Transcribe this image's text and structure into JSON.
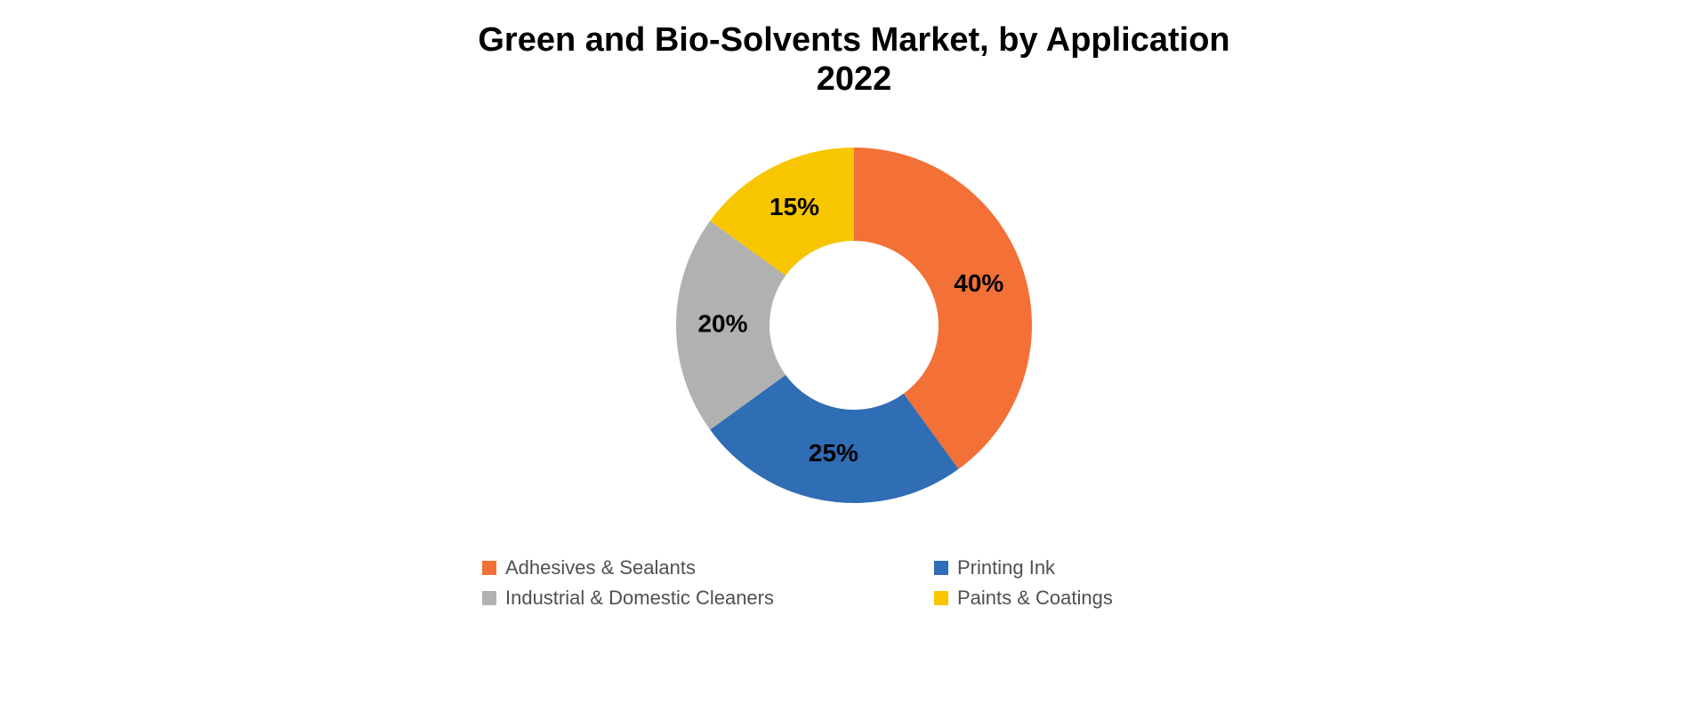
{
  "chart": {
    "type": "donut",
    "title": "Green and Bio-Solvents Market, by Application\n2022",
    "title_fontsize": 38,
    "title_fontweight": 600,
    "title_color": "#000000",
    "background_color": "#ffffff",
    "outer_radius": 200,
    "inner_radius": 95,
    "start_angle_deg": -90,
    "direction": "clockwise",
    "label_fontsize": 28,
    "label_fontweight": 700,
    "label_color": "#000000",
    "slices": [
      {
        "name": "Adhesives & Sealants",
        "value": 40,
        "label": "40%",
        "color": "#f37037"
      },
      {
        "name": "Printing Ink",
        "value": 25,
        "label": "25%",
        "color": "#2f6db5"
      },
      {
        "name": "Industrial & Domestic Cleaners",
        "value": 20,
        "label": "20%",
        "color": "#b1b1b1"
      },
      {
        "name": "Paints & Coatings",
        "value": 15,
        "label": "15%",
        "color": "#f8c600"
      }
    ],
    "legend": {
      "fontsize": 22,
      "color": "#505050",
      "swatch_size": 16,
      "columns": 2,
      "items": [
        {
          "label": "Adhesives & Sealants",
          "color": "#f37037"
        },
        {
          "label": "Printing Ink",
          "color": "#2f6db5"
        },
        {
          "label": "Industrial & Domestic Cleaners",
          "color": "#b1b1b1"
        },
        {
          "label": "Paints & Coatings",
          "color": "#f8c600"
        }
      ]
    }
  }
}
